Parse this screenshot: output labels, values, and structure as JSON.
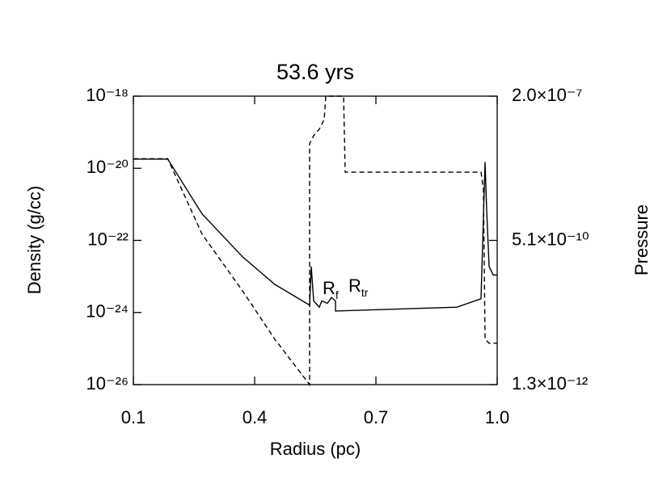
{
  "chart_data": {
    "type": "line",
    "title": "53.6 yrs",
    "xlabel": "Radius (pc)",
    "ylabel": "Density (g/cc)",
    "y2label": "Pressure",
    "xlim": [
      0.1,
      1
    ],
    "xticks": [
      0.1,
      0.4,
      0.7,
      {
        "value": 1,
        "label": "1.0"
      }
    ],
    "ylog": true,
    "ylim": [
      1e-26,
      1e-18
    ],
    "yticks": [
      {
        "value": 1e-26,
        "label": "10⁻²⁶"
      },
      {
        "value": 1e-24,
        "label": "10⁻²⁴"
      },
      {
        "value": 1e-22,
        "label": "10⁻²²"
      },
      {
        "value": 1e-20,
        "label": "10⁻²⁰"
      },
      {
        "value": 1e-18,
        "label": "10⁻¹⁸"
      }
    ],
    "y2log": true,
    "y2lim": [
      1.3e-12,
      2e-07
    ],
    "y2ticks": [
      {
        "value": 1.3e-12,
        "label": "1.3×10⁻¹²"
      },
      {
        "value": 5.1e-10,
        "label": "5.1×10⁻¹⁰"
      },
      {
        "value": 2e-07,
        "label": "2.0×10⁻⁷"
      }
    ],
    "series": [
      {
        "color": "#000000",
        "linestyle": "solid",
        "x": [
          0.1,
          0.185,
          0.27,
          0.37,
          0.45,
          0.536,
          0.54,
          0.546,
          0.56,
          0.566,
          0.58,
          0.59,
          0.6,
          0.6,
          0.9,
          0.96,
          0.97,
          0.974,
          0.98,
          0.99,
          1.0
        ],
        "values": [
          1.8e-20,
          1.8e-20,
          5.4e-22,
          3.5e-23,
          6e-24,
          1.6e-24,
          1.9e-23,
          2.1e-24,
          1.4e-24,
          2.1e-24,
          1.8e-24,
          2.6e-24,
          2.1e-24,
          1.1e-24,
          1.4e-24,
          2.4e-24,
          1.5e-20,
          6.9e-22,
          1.9e-23,
          1.1e-23,
          1.1e-23
        ]
      },
      {
        "color": "#000000",
        "linestyle": "dashed",
        "axis": "y2",
        "x": [
          0.1,
          0.185,
          0.27,
          0.37,
          0.45,
          0.536,
          0.536,
          0.546,
          0.56,
          0.572,
          0.576,
          0.62,
          0.624,
          0.96,
          0.966,
          0.97,
          0.98,
          1.0
        ],
        "values": [
          1.5e-08,
          1.5e-08,
          6.6e-10,
          6.3e-11,
          8.5e-12,
          1.3e-12,
          2.8e-08,
          3.9e-08,
          5.1e-08,
          7.6e-08,
          2e-07,
          2e-07,
          8.6e-09,
          8.6e-09,
          4.2e-09,
          8.5e-12,
          7.2e-12,
          7.2e-12
        ]
      }
    ],
    "annotations": [
      {
        "text": "R",
        "sub": "f"
      },
      {
        "text": "R",
        "sub": "tr"
      }
    ]
  }
}
